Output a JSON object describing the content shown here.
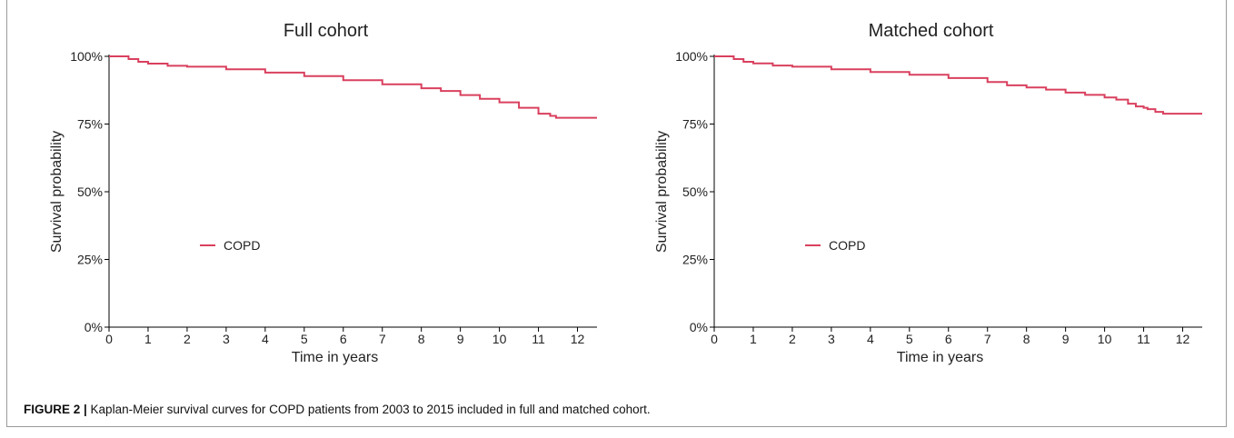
{
  "figure": {
    "caption_label": "FIGURE 2 |",
    "caption_text": " Kaplan-Meier survival curves for COPD patients from 2003 to 2015 included in full and matched cohort."
  },
  "colors": {
    "curve": "#d9405e",
    "axis": "#000000"
  },
  "chart_data": [
    {
      "type": "line",
      "title": "Full cohort",
      "xlabel": "Time in years",
      "ylabel": "Survival probability",
      "xlim": [
        0,
        12.5
      ],
      "ylim": [
        0,
        1
      ],
      "x_ticks": [
        0,
        1,
        2,
        3,
        4,
        5,
        6,
        7,
        8,
        9,
        10,
        11,
        12
      ],
      "y_ticks": [
        0,
        0.25,
        0.5,
        0.75,
        1.0
      ],
      "y_tick_labels": [
        "0%",
        "25%",
        "50%",
        "75%",
        "100%"
      ],
      "legend": {
        "placement": "center-left",
        "entries": [
          "COPD"
        ]
      },
      "series": [
        {
          "name": "COPD",
          "x": [
            0,
            0.3,
            0.5,
            0.75,
            1,
            1.5,
            2,
            3,
            4,
            5,
            6,
            7,
            8,
            8.5,
            9,
            9.5,
            10,
            10.5,
            11,
            11.3,
            11.45,
            12.5
          ],
          "y": [
            1.0,
            1.0,
            0.99,
            0.98,
            0.973,
            0.965,
            0.962,
            0.952,
            0.94,
            0.927,
            0.912,
            0.897,
            0.882,
            0.872,
            0.857,
            0.843,
            0.83,
            0.81,
            0.788,
            0.78,
            0.773,
            0.773
          ]
        }
      ]
    },
    {
      "type": "line",
      "title": "Matched cohort",
      "xlabel": "Time in years",
      "ylabel": "Survival probability",
      "xlim": [
        0,
        12.5
      ],
      "ylim": [
        0,
        1
      ],
      "x_ticks": [
        0,
        1,
        2,
        3,
        4,
        5,
        6,
        7,
        8,
        9,
        10,
        11,
        12
      ],
      "y_ticks": [
        0,
        0.25,
        0.5,
        0.75,
        1.0
      ],
      "y_tick_labels": [
        "0%",
        "25%",
        "50%",
        "75%",
        "100%"
      ],
      "legend": {
        "placement": "center-left",
        "entries": [
          "COPD"
        ]
      },
      "series": [
        {
          "name": "COPD",
          "x": [
            0,
            0.3,
            0.5,
            0.75,
            1,
            1.5,
            2,
            3,
            4,
            5,
            6,
            7,
            7.5,
            8,
            8.5,
            9,
            9.5,
            10,
            10.3,
            10.6,
            10.8,
            11,
            11.1,
            11.3,
            11.5,
            12.5
          ],
          "y": [
            1.0,
            1.0,
            0.99,
            0.98,
            0.974,
            0.966,
            0.962,
            0.952,
            0.942,
            0.932,
            0.92,
            0.905,
            0.893,
            0.885,
            0.877,
            0.866,
            0.858,
            0.848,
            0.84,
            0.825,
            0.815,
            0.81,
            0.805,
            0.795,
            0.788,
            0.788
          ]
        }
      ]
    }
  ]
}
